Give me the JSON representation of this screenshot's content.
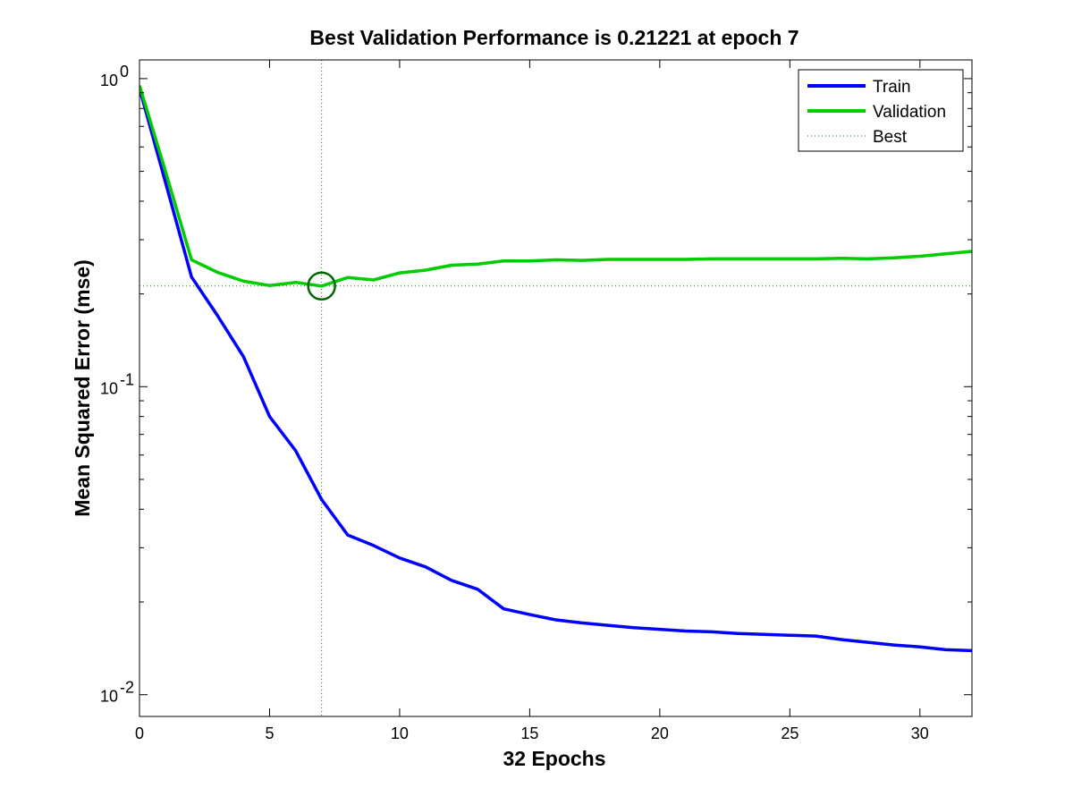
{
  "chart_data": {
    "type": "line",
    "title": "Best Validation Performance is 0.21221 at epoch 7",
    "xlabel": "32 Epochs",
    "ylabel": "Mean Squared Error  (mse)",
    "xlim": [
      0,
      32
    ],
    "ylim": [
      0.0085,
      1.15
    ],
    "y_scale": "log",
    "grid": false,
    "legend_position": "top-right",
    "x_ticks": [
      0,
      5,
      10,
      15,
      20,
      25,
      30
    ],
    "x_tick_labels": [
      "0",
      "5",
      "10",
      "15",
      "20",
      "25",
      "30"
    ],
    "y_ticks": [
      {
        "value": 1,
        "base": "10",
        "exp": "0"
      },
      {
        "value": 0.1,
        "base": "10",
        "exp": "-1"
      },
      {
        "value": 0.01,
        "base": "10",
        "exp": "-2"
      }
    ],
    "series": [
      {
        "name": "Train",
        "color": "#0000ff",
        "x": [
          0,
          1,
          2,
          3,
          4,
          5,
          6,
          7,
          8,
          9,
          10,
          11,
          12,
          13,
          14,
          15,
          16,
          17,
          18,
          19,
          20,
          21,
          22,
          23,
          24,
          25,
          26,
          27,
          28,
          29,
          30,
          31,
          32
        ],
        "y": [
          0.93,
          0.46,
          0.227,
          0.17,
          0.125,
          0.08,
          0.062,
          0.043,
          0.033,
          0.0305,
          0.0278,
          0.026,
          0.0235,
          0.022,
          0.019,
          0.0182,
          0.0175,
          0.0171,
          0.0168,
          0.0165,
          0.0163,
          0.0161,
          0.016,
          0.0158,
          0.0157,
          0.0156,
          0.0155,
          0.0151,
          0.0148,
          0.0145,
          0.0143,
          0.014,
          0.0139
        ]
      },
      {
        "name": "Validation",
        "color": "#00cc00",
        "x": [
          0,
          1,
          2,
          3,
          4,
          5,
          6,
          7,
          8,
          9,
          10,
          11,
          12,
          13,
          14,
          15,
          16,
          17,
          18,
          19,
          20,
          21,
          22,
          23,
          24,
          25,
          26,
          27,
          28,
          29,
          30,
          31,
          32
        ],
        "y": [
          0.95,
          0.5,
          0.258,
          0.235,
          0.22,
          0.213,
          0.218,
          0.21221,
          0.226,
          0.222,
          0.234,
          0.239,
          0.248,
          0.25,
          0.256,
          0.256,
          0.258,
          0.257,
          0.259,
          0.259,
          0.259,
          0.259,
          0.26,
          0.26,
          0.26,
          0.26,
          0.26,
          0.261,
          0.26,
          0.262,
          0.265,
          0.27,
          0.275
        ]
      }
    ],
    "best": {
      "name": "Best",
      "epoch": 7,
      "value": 0.21221,
      "color": "#008800"
    }
  }
}
